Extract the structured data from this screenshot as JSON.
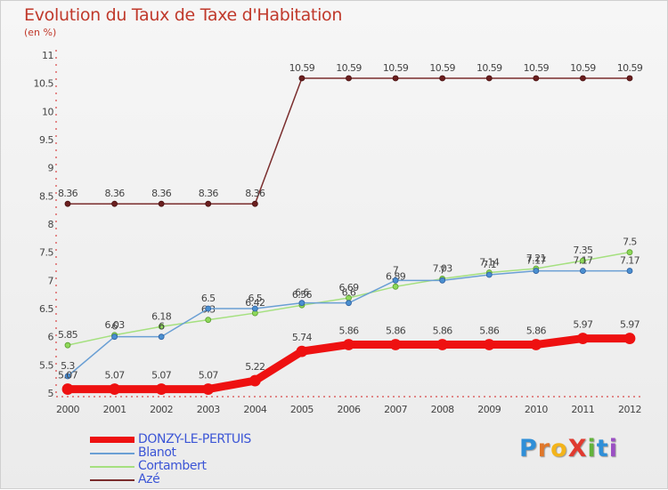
{
  "header": {
    "title": "Evolution du Taux de Taxe d'Habitation",
    "subtitle": "(en %)"
  },
  "logo": {
    "text": "ProXiti",
    "letters": [
      {
        "ch": "P",
        "color": "#2f8fd8"
      },
      {
        "ch": "r",
        "color": "#e0772a"
      },
      {
        "ch": "o",
        "color": "#f3b41b"
      },
      {
        "ch": "X",
        "color": "#e03a2f"
      },
      {
        "ch": "i",
        "color": "#62b33b"
      },
      {
        "ch": "t",
        "color": "#2f8fd8"
      },
      {
        "ch": "i",
        "color": "#9b4fc4"
      }
    ]
  },
  "chart_data": {
    "type": "line",
    "title": "Evolution du Taux de Taxe d'Habitation",
    "subtitle": "(en %)",
    "xlabel": "",
    "ylabel": "",
    "x": [
      "2000",
      "2001",
      "2002",
      "2003",
      "2004",
      "2005",
      "2006",
      "2007",
      "2008",
      "2009",
      "2010",
      "2011",
      "2012"
    ],
    "ylim": [
      5,
      11
    ],
    "yticks": [
      "5",
      "5.5",
      "6",
      "6.5",
      "7",
      "7.5",
      "8",
      "8.5",
      "9",
      "9.5",
      "10",
      "10.5",
      "11"
    ],
    "grid": false,
    "legend_position": "bottom-left",
    "series": [
      {
        "name": "DONZY-LE-PERTUIS",
        "color": "#ee1111",
        "values": [
          5.07,
          5.07,
          5.07,
          5.07,
          5.22,
          5.74,
          5.86,
          5.86,
          5.86,
          5.86,
          5.86,
          5.97,
          5.97
        ],
        "labels": [
          "5.07",
          "5.07",
          "5.07",
          "5.07",
          "5.22",
          "5.74",
          "5.86",
          "5.86",
          "5.86",
          "5.86",
          "5.86",
          "5.97",
          "5.97"
        ]
      },
      {
        "name": "Blanot",
        "color": "#6a9fd4",
        "values": [
          5.3,
          6.0,
          6.0,
          6.5,
          6.5,
          6.6,
          6.6,
          7.0,
          7.0,
          7.1,
          7.17,
          7.17,
          7.17
        ],
        "labels": [
          "5.3",
          "6",
          "6",
          "6.5",
          "6.5",
          "6.6",
          "6.6",
          "7",
          "7",
          "7.1",
          "7.17",
          "7.17",
          "7.17"
        ]
      },
      {
        "name": "Cortambert",
        "color": "#a5e07f",
        "values": [
          5.85,
          6.03,
          6.18,
          6.3,
          6.42,
          6.56,
          6.69,
          6.89,
          7.03,
          7.14,
          7.21,
          7.35,
          7.5
        ],
        "labels": [
          "5.85",
          "6.03",
          "6.18",
          "6.3",
          "6.42",
          "6.56",
          "6.69",
          "6.89",
          "7.03",
          "7.14",
          "7.21",
          "7.35",
          "7.5"
        ]
      },
      {
        "name": "Azé",
        "color": "#7a2d2d",
        "values": [
          8.36,
          8.36,
          8.36,
          8.36,
          8.36,
          10.59,
          10.59,
          10.59,
          10.59,
          10.59,
          10.59,
          10.59,
          10.59
        ],
        "labels": [
          "8.36",
          "8.36",
          "8.36",
          "8.36",
          "8.36",
          "10.59",
          "10.59",
          "10.59",
          "10.59",
          "10.59",
          "10.59",
          "10.59",
          "10.59"
        ]
      }
    ]
  }
}
